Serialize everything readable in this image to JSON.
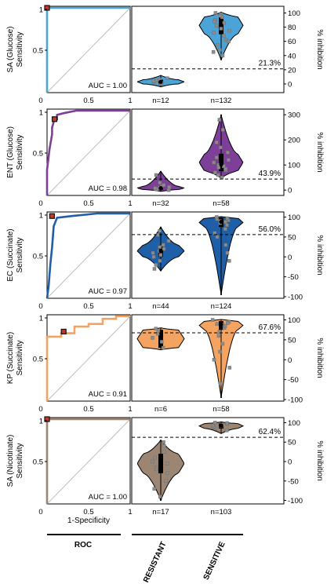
{
  "figure": {
    "xlabel": "1-Specificity",
    "roc_footer": "ROC",
    "group_labels": [
      "RESISTANT",
      "SENSITIVE"
    ]
  },
  "chart_data": [
    {
      "panel": "SA (Glucose)",
      "ylabel_line1": "SA (Glucose)",
      "ylabel_line2": "Sensitivity",
      "color": "#4ba3d6",
      "auc_text": "AUC = 1.00",
      "roc": {
        "type": "line",
        "x": [
          0,
          0,
          1
        ],
        "y": [
          0,
          1,
          1
        ],
        "point": [
          0.0,
          1.0
        ],
        "xlim": [
          0,
          1
        ],
        "ylim": [
          0,
          1
        ],
        "xticks": [
          "0",
          "0.5",
          "1"
        ],
        "yticks": [
          "0.5",
          "1"
        ]
      },
      "violin": {
        "type": "violin",
        "ylim": [
          -10,
          105
        ],
        "yticks": [
          0,
          20,
          40,
          60,
          80,
          100
        ],
        "ylabel": "% inhibition",
        "threshold": 21.3,
        "threshold_label": "21.3%",
        "groups": [
          {
            "name": "RESISTANT",
            "n_label": "n=12",
            "q1": 0,
            "median": 3,
            "q3": 6,
            "min": -4,
            "max": 12,
            "points": [
              0,
              2,
              3,
              5,
              6,
              1,
              4,
              8
            ]
          },
          {
            "name": "SENSITIVE",
            "n_label": "n=132",
            "q1": 70,
            "median": 83,
            "q3": 95,
            "min": 34,
            "max": 101,
            "points": [
              40,
              48,
              55,
              62,
              68,
              72,
              78,
              82,
              86,
              90,
              94,
              98,
              100,
              45,
              60,
              75,
              88,
              96
            ]
          }
        ]
      }
    },
    {
      "panel": "ENT (Glucose)",
      "ylabel_line1": "ENT (Glucose)",
      "ylabel_line2": "Sensitivity",
      "color": "#7d3f98",
      "auc_text": "AUC = 0.98",
      "roc": {
        "type": "line",
        "x": [
          0,
          0,
          0.03,
          0.06,
          0.06,
          0.09,
          0.12,
          0.12,
          0.2,
          0.35,
          1
        ],
        "y": [
          0,
          0.3,
          0.55,
          0.72,
          0.8,
          0.9,
          0.9,
          0.95,
          0.97,
          1,
          1
        ],
        "point": [
          0.09,
          0.9
        ],
        "xlim": [
          0,
          1
        ],
        "ylim": [
          0,
          1
        ],
        "xticks": [
          "0",
          "0.5",
          "1"
        ],
        "yticks": [
          "0.5",
          "1"
        ]
      },
      "violin": {
        "type": "violin",
        "ylim": [
          -15,
          310
        ],
        "yticks": [
          0,
          100,
          200,
          300
        ],
        "ylabel": "% inhibition",
        "threshold": 43.9,
        "threshold_label": "43.9%",
        "groups": [
          {
            "name": "RESISTANT",
            "n_label": "n=32",
            "q1": 2,
            "median": 8,
            "q3": 15,
            "min": -5,
            "max": 75,
            "points": [
              0,
              5,
              10,
              15,
              20,
              3,
              8,
              12,
              30,
              60
            ]
          },
          {
            "name": "SENSITIVE",
            "n_label": "n=58",
            "q1": 75,
            "median": 102,
            "q3": 145,
            "min": 48,
            "max": 300,
            "points": [
              50,
              60,
              70,
              80,
              90,
              100,
              110,
              120,
              130,
              150,
              170,
              190,
              240,
              280,
              85,
              95
            ]
          }
        ]
      }
    },
    {
      "panel": "EC (Succinate)",
      "ylabel_line1": "EC (Succinate)",
      "ylabel_line2": "Sensitivity",
      "color": "#1f5fa8",
      "auc_text": "AUC = 0.97",
      "roc": {
        "type": "line",
        "x": [
          0,
          0.02,
          0.04,
          0.06,
          0.08,
          0.12,
          0.3,
          0.6,
          1
        ],
        "y": [
          0,
          0.15,
          0.4,
          0.6,
          0.85,
          0.95,
          0.97,
          1,
          1
        ],
        "point": [
          0.06,
          0.97
        ],
        "xlim": [
          0,
          1
        ],
        "ylim": [
          0,
          1
        ],
        "xticks": [
          "0",
          "0.5",
          "1"
        ],
        "yticks": [
          "0.5",
          "1"
        ]
      },
      "violin": {
        "type": "violin",
        "ylim": [
          -100,
          105
        ],
        "yticks": [
          -100,
          -50,
          0,
          50,
          100
        ],
        "ylabel": "% inhibition",
        "threshold": 56.0,
        "threshold_label": "56.0%",
        "groups": [
          {
            "name": "RESISTANT",
            "n_label": "n=44",
            "q1": 0,
            "median": 15,
            "q3": 30,
            "min": -35,
            "max": 75,
            "points": [
              -30,
              -20,
              -10,
              0,
              10,
              15,
              20,
              30,
              40,
              55,
              65,
              5,
              25
            ]
          },
          {
            "name": "SENSITIVE",
            "n_label": "n=124",
            "q1": 75,
            "median": 88,
            "q3": 98,
            "min": -95,
            "max": 101,
            "points": [
              80,
              85,
              90,
              95,
              100,
              70,
              60,
              50,
              30,
              10,
              -10,
              92,
              97,
              88
            ]
          }
        ]
      }
    },
    {
      "panel": "KP (Succinate)",
      "ylabel_line1": "KP (Succinate)",
      "ylabel_line2": "Sensitivity",
      "color": "#f4a460",
      "auc_text": "AUC = 0.91",
      "roc": {
        "type": "line",
        "x": [
          0,
          0,
          0.17,
          0.17,
          0.33,
          0.33,
          0.5,
          0.5,
          0.67,
          0.67,
          0.83,
          0.83,
          1,
          1
        ],
        "y": [
          0,
          0.76,
          0.76,
          0.8,
          0.8,
          0.88,
          0.88,
          0.91,
          0.91,
          0.97,
          0.97,
          1,
          1,
          1
        ],
        "point": [
          0.2,
          0.82
        ],
        "xlim": [
          0,
          1
        ],
        "ylim": [
          0,
          1
        ],
        "xticks": [
          "0",
          "0.5",
          "1"
        ],
        "yticks": [
          "0.5",
          "1"
        ]
      },
      "violin": {
        "type": "violin",
        "ylim": [
          -100,
          105
        ],
        "yticks": [
          -100,
          -50,
          0,
          50,
          100
        ],
        "ylabel": "% inhibition",
        "threshold": 67.6,
        "threshold_label": "67.6%",
        "groups": [
          {
            "name": "RESISTANT",
            "n_label": "n=6",
            "q1": 30,
            "median": 55,
            "q3": 75,
            "min": 25,
            "max": 80,
            "points": [
              30,
              45,
              55,
              65,
              72,
              78
            ]
          },
          {
            "name": "SENSITIVE",
            "n_label": "n=58",
            "q1": 75,
            "median": 88,
            "q3": 97,
            "min": -95,
            "max": 101,
            "points": [
              70,
              80,
              85,
              90,
              95,
              100,
              60,
              40,
              20,
              0,
              -20,
              -60,
              92,
              88
            ]
          }
        ]
      }
    },
    {
      "panel": "SA (Nicotinate)",
      "ylabel_line1": "SA (Nicotinate)",
      "ylabel_line2": "Sensitivity",
      "color": "#9c8572",
      "auc_text": "AUC = 1.00",
      "roc": {
        "type": "line",
        "x": [
          0,
          0,
          1
        ],
        "y": [
          0,
          1,
          1
        ],
        "point": [
          0.0,
          1.0
        ],
        "xlim": [
          0,
          1
        ],
        "ylim": [
          0,
          1
        ],
        "xticks": [
          "0",
          "0.5",
          "1"
        ],
        "yticks": [
          "0.5",
          "1"
        ]
      },
      "violin": {
        "type": "violin",
        "ylim": [
          -105,
          105
        ],
        "yticks": [
          -100,
          -50,
          0,
          50,
          100
        ],
        "ylabel": "% inhibition",
        "threshold": 62.4,
        "threshold_label": "62.4%",
        "groups": [
          {
            "name": "RESISTANT",
            "n_label": "n=17",
            "q1": -30,
            "median": -5,
            "q3": 20,
            "min": -100,
            "max": 55,
            "points": [
              -90,
              -70,
              -50,
              -30,
              -15,
              0,
              10,
              25,
              40,
              50,
              -5,
              -20
            ]
          },
          {
            "name": "SENSITIVE",
            "n_label": "n=103",
            "q1": 85,
            "median": 93,
            "q3": 98,
            "min": 72,
            "max": 102,
            "points": [
              80,
              85,
              88,
              90,
              93,
              95,
              97,
              99,
              100,
              92
            ]
          }
        ]
      }
    }
  ]
}
